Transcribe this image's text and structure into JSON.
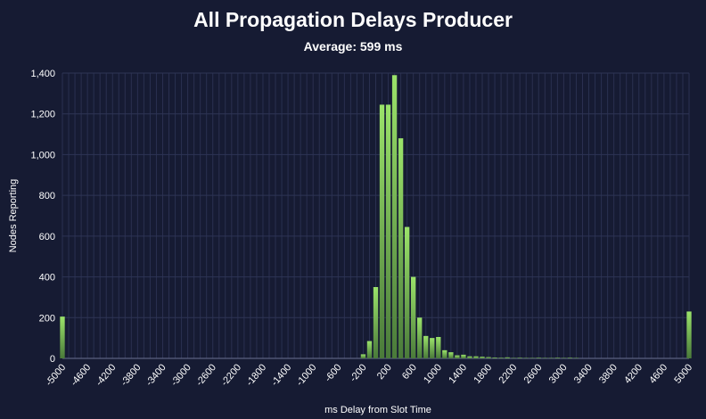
{
  "chart_data": {
    "type": "bar",
    "title": "All Propagation Delays Producer",
    "subtitle": "Average: 599 ms",
    "xlabel": "ms Delay from Slot Time",
    "ylabel": "Nodes Reporting",
    "ylim": [
      0,
      1400
    ],
    "xlim": [
      -5000,
      5000
    ],
    "bin_width": 100,
    "yticks": [
      "0",
      "200",
      "400",
      "600",
      "800",
      "1,000",
      "1,200",
      "1,400"
    ],
    "xticks": [
      "-5000",
      "-4600",
      "-4200",
      "-3800",
      "-3400",
      "-3000",
      "-2600",
      "-2200",
      "-1800",
      "-1400",
      "-1000",
      "-600",
      "-200",
      "200",
      "600",
      "1000",
      "1400",
      "1800",
      "2200",
      "2600",
      "3000",
      "3400",
      "3800",
      "4200",
      "4600",
      "5000"
    ],
    "grid": true,
    "bar_color_top": "#9be36a",
    "bar_color_bottom": "#4a7a3a",
    "x": [
      -5000,
      -200,
      -100,
      0,
      100,
      200,
      300,
      400,
      500,
      600,
      700,
      800,
      900,
      1000,
      1100,
      1200,
      1300,
      1400,
      1500,
      1600,
      1700,
      1800,
      1900,
      2000,
      2100,
      2200,
      2300,
      2400,
      2500,
      2600,
      2700,
      2800,
      2900,
      3000,
      3100,
      3200,
      5000
    ],
    "values": [
      205,
      20,
      85,
      350,
      1245,
      1245,
      1390,
      1080,
      645,
      400,
      200,
      110,
      100,
      105,
      40,
      30,
      15,
      18,
      10,
      10,
      8,
      6,
      4,
      3,
      5,
      2,
      3,
      2,
      2,
      3,
      2,
      2,
      3,
      2,
      3,
      2,
      230
    ]
  }
}
